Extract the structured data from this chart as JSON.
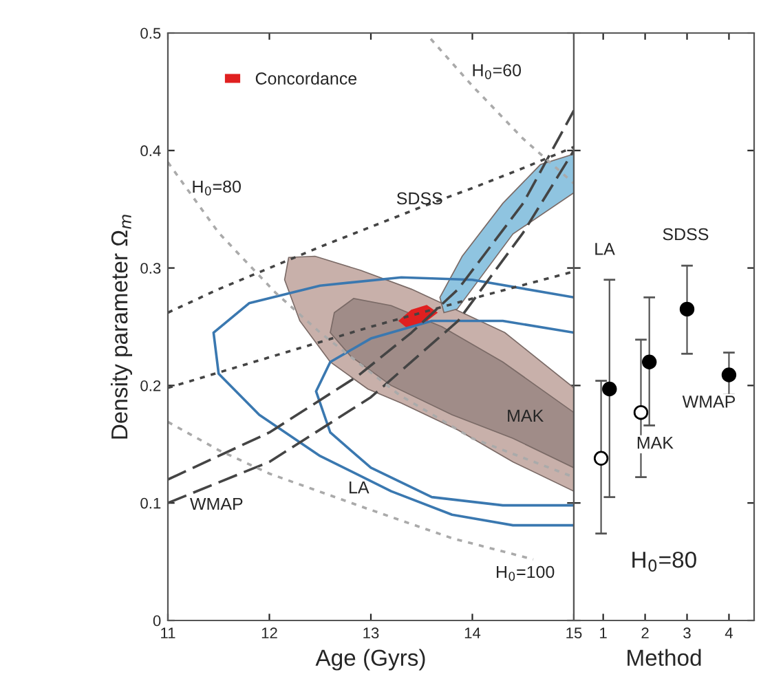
{
  "chart_data": [
    {
      "type": "line",
      "xlabel": "Age (Gyrs)",
      "ylabel": "Density parameter Ω$_{m}$",
      "xlim": [
        11,
        15
      ],
      "ylim": [
        0,
        0.5
      ],
      "xticks": [
        11,
        12,
        13,
        14,
        15
      ],
      "yticks": [
        0,
        {
          "value": 0.1,
          "label": "0.1"
        },
        {
          "value": 0.2,
          "label": "0.2"
        },
        {
          "value": 0.3,
          "label": "0.3"
        },
        {
          "value": 0.4,
          "label": "0.4"
        },
        {
          "value": 0.5,
          "label": "0.5"
        }
      ],
      "grid": false,
      "legend": "top left",
      "series": [
        {
          "type": "area",
          "color": "#c8b0aa",
          "x": [
            12.19,
            12.45,
            12.9,
            13.4,
            13.9,
            14.32,
            15,
            15,
            14.4,
            13.86,
            13.3,
            12.97,
            12.6,
            12.3,
            12.15
          ],
          "values": [
            0.309,
            0.31,
            0.298,
            0.282,
            0.262,
            0.245,
            0.198,
            0.11,
            0.135,
            0.162,
            0.185,
            0.197,
            0.22,
            0.255,
            0.29
          ]
        },
        {
          "type": "area",
          "color": "#a08c88",
          "x": [
            12.64,
            12.83,
            13.2,
            13.7,
            14.3,
            15,
            15,
            14.4,
            13.8,
            13.2,
            12.8,
            12.6
          ],
          "values": [
            0.262,
            0.274,
            0.268,
            0.25,
            0.22,
            0.177,
            0.13,
            0.155,
            0.175,
            0.2,
            0.225,
            0.245
          ]
        },
        {
          "type": "area",
          "color": "#8fc4e0",
          "x": [
            13.68,
            13.9,
            14.3,
            14.67,
            15,
            15,
            14.4,
            13.85,
            13.72
          ],
          "values": [
            0.275,
            0.31,
            0.355,
            0.388,
            0.397,
            0.364,
            0.329,
            0.265,
            0.262
          ]
        },
        {
          "type": "line",
          "color": "#3a78b0",
          "line_style": "solid",
          "x": [
            15,
            14,
            13.3,
            12.5,
            11.8,
            11.45,
            11.5,
            11.9,
            12.5,
            13.2,
            13.8,
            14.4,
            15
          ],
          "values": [
            0.275,
            0.29,
            0.292,
            0.285,
            0.27,
            0.245,
            0.21,
            0.175,
            0.14,
            0.11,
            0.09,
            0.081,
            0.081
          ]
        },
        {
          "type": "line",
          "color": "#3a78b0",
          "line_style": "solid",
          "x": [
            15,
            14.3,
            13.6,
            13.0,
            12.6,
            12.46,
            12.6,
            13.0,
            13.6,
            14.3,
            15
          ],
          "values": [
            0.245,
            0.255,
            0.255,
            0.24,
            0.22,
            0.195,
            0.16,
            0.13,
            0.105,
            0.098,
            0.098
          ]
        },
        {
          "type": "line",
          "color": "#444444",
          "line_style": "dotted",
          "x": [
            11,
            11.5,
            12,
            12.5,
            13,
            13.5,
            14,
            14.5,
            15
          ],
          "values": [
            0.262,
            0.282,
            0.3,
            0.318,
            0.335,
            0.352,
            0.368,
            0.385,
            0.403
          ]
        },
        {
          "type": "line",
          "color": "#444444",
          "line_style": "dotted",
          "x": [
            11,
            12,
            13,
            14,
            15
          ],
          "values": [
            0.198,
            0.224,
            0.25,
            0.274,
            0.297
          ]
        },
        {
          "type": "line",
          "color": "#444444",
          "line_style": "dashed",
          "x": [
            11,
            12,
            12.87,
            13.4,
            13.86,
            14.5,
            15
          ],
          "values": [
            0.12,
            0.16,
            0.208,
            0.245,
            0.282,
            0.355,
            0.434
          ]
        },
        {
          "type": "line",
          "color": "#444444",
          "line_style": "dashed",
          "x": [
            11,
            12,
            13,
            13.86,
            14.5,
            15
          ],
          "values": [
            0.1,
            0.135,
            0.19,
            0.255,
            0.33,
            0.4
          ]
        },
        {
          "type": "line",
          "color": "#aaaaaa",
          "line_style": "dotted",
          "x": [
            13.59,
            14.0,
            14.5,
            15
          ],
          "values": [
            0.495,
            0.455,
            0.41,
            0.372
          ]
        },
        {
          "type": "line",
          "color": "#aaaaaa",
          "line_style": "dotted",
          "x": [
            11.0,
            11.5,
            12.06,
            12.5,
            13.28,
            14,
            15
          ],
          "values": [
            0.39,
            0.33,
            0.279,
            0.245,
            0.192,
            0.155,
            0.122
          ]
        },
        {
          "type": "line",
          "color": "#aaaaaa",
          "line_style": "dotted",
          "x": [
            11.0,
            11.5,
            12.0,
            12.97,
            13.8,
            14.6
          ],
          "values": [
            0.169,
            0.145,
            0.125,
            0.095,
            0.07,
            0.052
          ]
        },
        {
          "type": "area",
          "name": "Concordance",
          "color": "#e02020",
          "x": [
            13.28,
            13.4,
            13.55,
            13.65,
            13.5,
            13.35
          ],
          "values": [
            0.255,
            0.264,
            0.268,
            0.262,
            0.252,
            0.25
          ]
        }
      ],
      "annotations": [
        "H$_{0}$=60",
        "H$_{0}$=80",
        "SDSS",
        "WMAP",
        "LA",
        "MAK",
        "H$_{0}$=100"
      ]
    },
    {
      "type": "scatter",
      "xlabel": "Method",
      "xlim": [
        0.3,
        4.6
      ],
      "ylim": [
        0,
        0.5
      ],
      "xticks": [
        1,
        2,
        3,
        4
      ],
      "yticks": [
        {
          "value": 0,
          "label": null
        },
        {
          "value": 0.1,
          "label": null
        },
        {
          "value": 0.2,
          "label": null
        },
        {
          "value": 0.3,
          "label": null
        },
        {
          "value": 0.4,
          "label": null
        },
        {
          "value": 0.5,
          "label": null
        }
      ],
      "tick_labels": "x",
      "grid": false,
      "marker": "circle",
      "series": [
        {
          "color": "#ffffff",
          "x": [
            0.95,
            1.9
          ],
          "values": [
            0.138,
            0.177
          ],
          "errors": [
            [
              0.074,
              0.204
            ],
            [
              0.122,
              0.239
            ]
          ]
        },
        {
          "color": "#000000",
          "x": [
            1.15,
            2.1,
            3.0,
            4.0
          ],
          "values": [
            0.197,
            0.22,
            0.265,
            0.209
          ],
          "errors": [
            [
              0.105,
              0.29
            ],
            [
              0.166,
              0.275
            ],
            [
              0.227,
              0.302
            ],
            [
              0.192,
              0.228
            ]
          ]
        }
      ],
      "annotations": [
        "LA",
        "MAK",
        "SDSS",
        "WMAP",
        "H$_{0}$=80"
      ]
    }
  ]
}
